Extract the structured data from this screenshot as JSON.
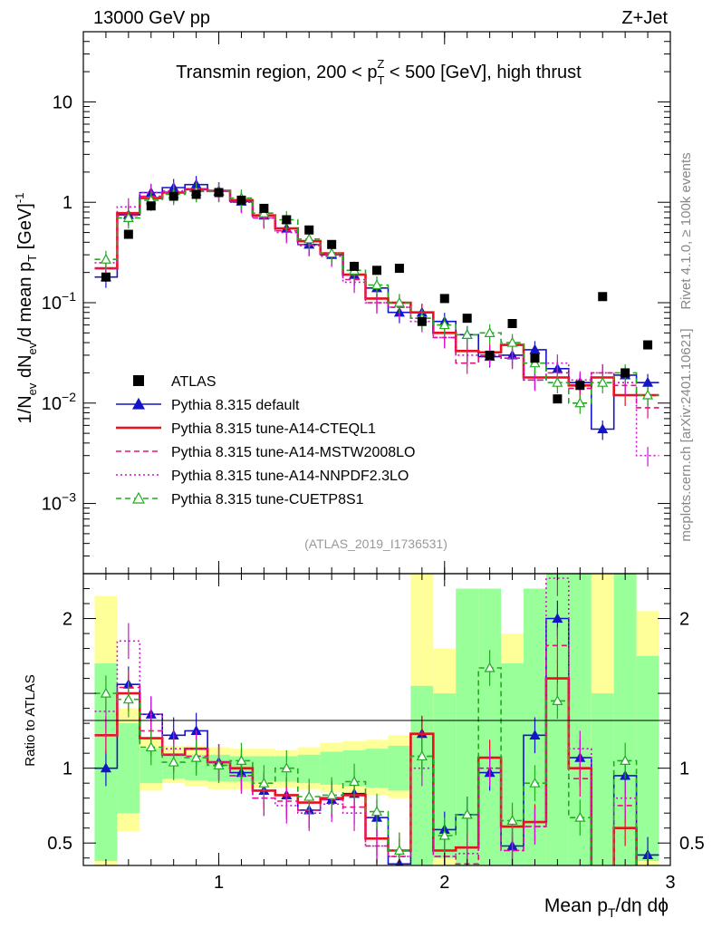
{
  "header": {
    "left": "13000 GeV pp",
    "right": "Z+Jet"
  },
  "side_text": {
    "top": "Rivet 4.1.0, ≥ 100k events",
    "bottom": "mcplots.cern.ch [arXiv:2401.10621]"
  },
  "chart_data": {
    "type": "scatter",
    "title": "Transmin region, 200 < p_T^Z < 500 [GeV], high thrust",
    "title_parts": {
      "pre": "Transmin region, 200 < p",
      "sub": "T",
      "sup": "Z",
      "post": " < 500 [GeV], high thrust"
    },
    "analysis_id": "(ATLAS_2019_I1736531)",
    "xlabel": "Mean p_T/dη dϕ",
    "xlabel_parts": {
      "pre": "Mean p",
      "sub": "T",
      "post": "/dη dϕ"
    },
    "ylabel": "1/N_ev dN_ev/d mean p_T [GeV]^-1",
    "ylabel_parts": {
      "a": "1/N",
      "a_sub": "ev",
      "b": " dN",
      "b_sub": "ev",
      "c": "/d mean p",
      "c_sub": "T",
      "d": " [GeV]",
      "d_sup": "-1"
    },
    "ratio_ylabel": "Ratio to ATLAS",
    "xlim": [
      0.4,
      3.0
    ],
    "ylim_main": [
      0.0002,
      50
    ],
    "ylim_ratio": [
      0.35,
      2.3
    ],
    "yscale_main": "log",
    "x_ticks": [
      1,
      2,
      3
    ],
    "x_tick_labels": [
      "1",
      "2",
      "3"
    ],
    "y_ticks_main": [
      0.001,
      0.01,
      0.1,
      1,
      10
    ],
    "y_tick_labels_main": [
      {
        "base": "10",
        "exp": "−3",
        "v": 0.001
      },
      {
        "base": "10",
        "exp": "−2",
        "v": 0.01
      },
      {
        "base": "10",
        "exp": "−1",
        "v": 0.1
      },
      {
        "base": "1",
        "exp": "",
        "v": 1
      },
      {
        "base": "10",
        "exp": "",
        "v": 10
      }
    ],
    "y_ticks_ratio": [
      0.5,
      1,
      2
    ],
    "y_tick_labels_ratio": [
      "0.5",
      "1",
      "2"
    ],
    "x": [
      0.5,
      0.6,
      0.7,
      0.8,
      0.9,
      1.0,
      1.1,
      1.2,
      1.3,
      1.4,
      1.5,
      1.6,
      1.7,
      1.8,
      1.9,
      2.0,
      2.1,
      2.2,
      2.3,
      2.4,
      2.5,
      2.6,
      2.7,
      2.8,
      2.9
    ],
    "atlas": [
      0.18,
      0.48,
      0.92,
      1.15,
      1.2,
      1.25,
      1.05,
      0.87,
      0.67,
      0.53,
      0.38,
      0.23,
      0.21,
      0.22,
      0.065,
      0.11,
      0.07,
      0.03,
      0.062,
      0.028,
      0.011,
      0.015,
      0.115,
      0.02,
      0.038
    ],
    "legend": {
      "position": "lower-left",
      "entries": [
        {
          "label": "ATLAS",
          "color": "#000000",
          "marker": "square",
          "line": "none"
        },
        {
          "label": "Pythia 8.315 default",
          "color": "#1515c8",
          "marker": "triangle",
          "line": "solid"
        },
        {
          "label": "Pythia 8.315 tune-A14-CTEQL1",
          "color": "#e8111d",
          "marker": "none",
          "line": "solid-thick"
        },
        {
          "label": "Pythia 8.315 tune-A14-MSTW2008LO",
          "color": "#e8117a",
          "marker": "none",
          "line": "dashed"
        },
        {
          "label": "Pythia 8.315 tune-A14-NNPDF2.3LO",
          "color": "#d40fd4",
          "marker": "none",
          "line": "dotted"
        },
        {
          "label": "Pythia 8.315 tune-CUETP8S1",
          "color": "#22aa22",
          "marker": "triangle-open",
          "line": "dashed"
        }
      ]
    },
    "series": [
      {
        "name": "Pythia 8.315 default",
        "color": "#1515c8",
        "values": [
          0.18,
          0.75,
          1.25,
          1.4,
          1.5,
          1.3,
          1.02,
          0.74,
          0.55,
          0.38,
          0.3,
          0.19,
          0.14,
          0.08,
          0.08,
          0.065,
          0.048,
          0.029,
          0.03,
          0.034,
          0.022,
          0.016,
          0.0055,
          0.019,
          0.016
        ],
        "ratio": [
          1.0,
          1.56,
          1.36,
          1.22,
          1.25,
          1.04,
          0.97,
          0.85,
          0.82,
          0.72,
          0.79,
          0.83,
          0.67,
          0.36,
          1.23,
          0.59,
          0.69,
          0.97,
          0.48,
          1.22,
          2.0,
          1.07,
          0.05,
          0.95,
          0.42
        ]
      },
      {
        "name": "Pythia 8.315 tune-A14-CTEQL1",
        "color": "#e8111d",
        "values": [
          0.22,
          0.78,
          1.1,
          1.25,
          1.35,
          1.3,
          1.05,
          0.74,
          0.55,
          0.41,
          0.31,
          0.19,
          0.11,
          0.1,
          0.08,
          0.05,
          0.033,
          0.032,
          0.038,
          0.018,
          0.018,
          0.015,
          0.018,
          0.012,
          0.012
        ],
        "ratio": [
          1.22,
          1.5,
          1.2,
          1.09,
          1.13,
          1.04,
          1.0,
          0.85,
          0.82,
          0.77,
          0.8,
          0.82,
          0.53,
          0.45,
          1.23,
          0.45,
          0.47,
          1.07,
          0.61,
          0.64,
          1.6,
          1.0,
          0.16,
          0.6,
          0.32
        ]
      },
      {
        "name": "Pythia 8.315 tune-A14-MSTW2008LO",
        "color": "#e8117a",
        "values": [
          0.22,
          0.74,
          1.15,
          1.25,
          1.3,
          1.3,
          1.0,
          0.7,
          0.52,
          0.38,
          0.3,
          0.17,
          0.1,
          0.09,
          0.07,
          0.045,
          0.025,
          0.03,
          0.028,
          0.017,
          0.02,
          0.014,
          0.02,
          0.015,
          0.009
        ],
        "ratio": [
          1.22,
          1.54,
          1.25,
          1.09,
          1.08,
          1.04,
          0.95,
          0.8,
          0.78,
          0.72,
          0.79,
          0.74,
          0.48,
          0.41,
          1.08,
          0.41,
          0.36,
          1.0,
          0.45,
          0.61,
          1.82,
          0.93,
          0.17,
          0.75,
          0.24
        ]
      },
      {
        "name": "Pythia 8.315 tune-A14-NNPDF2.3LO",
        "color": "#d40fd4",
        "values": [
          0.25,
          0.9,
          1.25,
          1.3,
          1.35,
          1.3,
          1.0,
          0.7,
          0.5,
          0.37,
          0.29,
          0.16,
          0.1,
          0.09,
          0.065,
          0.045,
          0.03,
          0.03,
          0.028,
          0.017,
          0.025,
          0.017,
          0.02,
          0.016,
          0.003
        ],
        "ratio": [
          1.38,
          1.85,
          1.36,
          1.13,
          1.13,
          1.04,
          0.95,
          0.8,
          0.75,
          0.7,
          0.76,
          0.7,
          0.48,
          0.41,
          1.0,
          0.41,
          0.43,
          1.0,
          0.45,
          0.61,
          2.27,
          1.13,
          0.17,
          0.8,
          0.08
        ]
      },
      {
        "name": "Pythia 8.315 tune-CUETP8S1",
        "color": "#22aa22",
        "values": [
          0.27,
          0.7,
          1.05,
          1.2,
          1.28,
          1.28,
          1.1,
          0.78,
          0.67,
          0.43,
          0.31,
          0.21,
          0.15,
          0.1,
          0.07,
          0.06,
          0.048,
          0.05,
          0.04,
          0.025,
          0.016,
          0.01,
          0.016,
          0.02,
          0.012
        ],
        "ratio": [
          1.5,
          1.46,
          1.14,
          1.04,
          1.07,
          1.02,
          1.05,
          0.9,
          1.0,
          0.81,
          0.82,
          0.91,
          0.71,
          0.45,
          1.08,
          0.55,
          0.69,
          1.67,
          0.65,
          0.9,
          1.45,
          0.67,
          0.14,
          1.05,
          0.32
        ]
      }
    ],
    "atlas_band_yellow": [
      [
        0.3,
        2.15
      ],
      [
        0.58,
        1.4
      ],
      [
        0.85,
        1.2
      ],
      [
        0.9,
        1.15
      ],
      [
        0.88,
        1.15
      ],
      [
        0.86,
        1.14
      ],
      [
        0.86,
        1.13
      ],
      [
        0.87,
        1.13
      ],
      [
        0.87,
        1.12
      ],
      [
        0.86,
        1.14
      ],
      [
        0.84,
        1.17
      ],
      [
        0.83,
        1.18
      ],
      [
        0.82,
        1.19
      ],
      [
        0.8,
        1.22
      ],
      [
        0.3,
        2.3
      ],
      [
        0.3,
        1.8
      ],
      [
        0.3,
        2.1
      ],
      [
        0.3,
        2.2
      ],
      [
        0.3,
        1.9
      ],
      [
        0.3,
        2.0
      ],
      [
        0.3,
        2.3
      ],
      [
        0.3,
        2.3
      ],
      [
        0.3,
        2.3
      ],
      [
        0.3,
        2.3
      ],
      [
        0.3,
        2.05
      ]
    ],
    "atlas_band_green": [
      [
        0.38,
        1.7
      ],
      [
        0.7,
        1.3
      ],
      [
        0.9,
        1.13
      ],
      [
        0.93,
        1.1
      ],
      [
        0.92,
        1.09
      ],
      [
        0.91,
        1.09
      ],
      [
        0.91,
        1.08
      ],
      [
        0.91,
        1.08
      ],
      [
        0.91,
        1.08
      ],
      [
        0.9,
        1.09
      ],
      [
        0.89,
        1.11
      ],
      [
        0.88,
        1.12
      ],
      [
        0.87,
        1.13
      ],
      [
        0.85,
        1.15
      ],
      [
        0.3,
        1.55
      ],
      [
        0.4,
        1.5
      ],
      [
        0.3,
        2.2
      ],
      [
        0.3,
        2.2
      ],
      [
        0.3,
        1.7
      ],
      [
        0.3,
        2.2
      ],
      [
        0.3,
        2.3
      ],
      [
        0.3,
        2.3
      ],
      [
        0.3,
        1.5
      ],
      [
        0.3,
        2.3
      ],
      [
        0.38,
        1.75
      ]
    ]
  }
}
